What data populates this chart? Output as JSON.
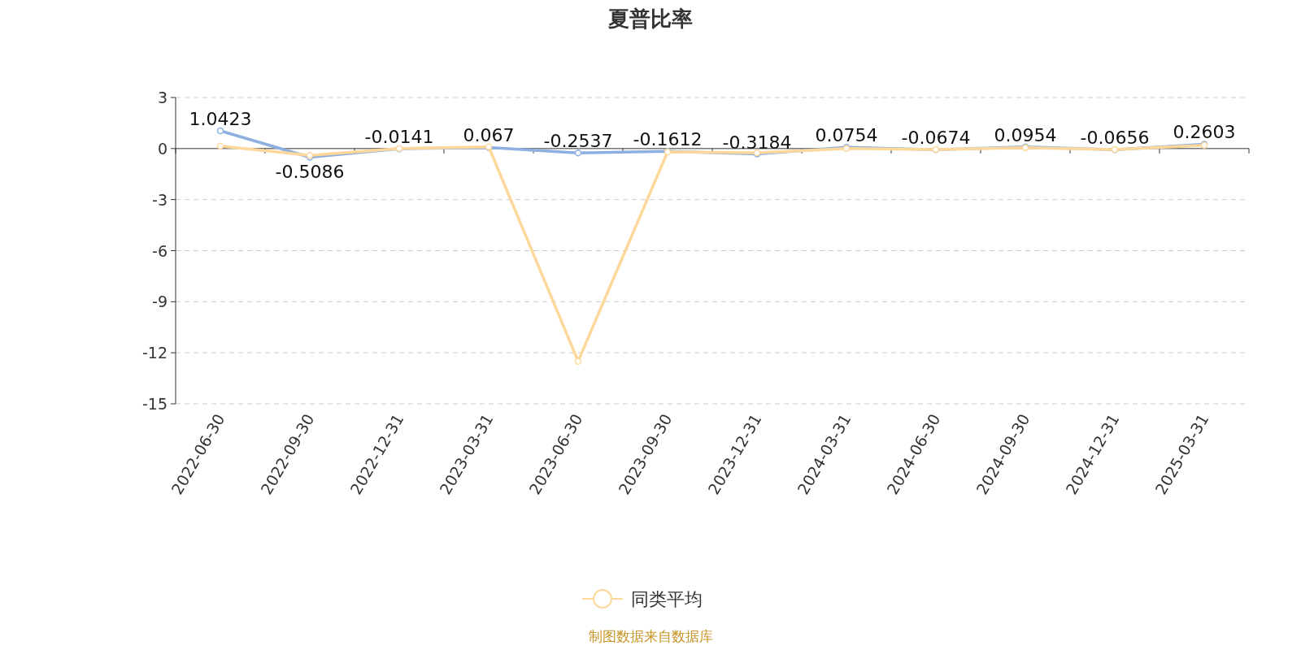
{
  "chart_data": {
    "type": "line",
    "title": "夏普比率",
    "categories": [
      "2022-06-30",
      "2022-09-30",
      "2022-12-31",
      "2023-03-31",
      "2023-06-30",
      "2023-09-30",
      "2023-12-31",
      "2024-03-31",
      "2024-06-30",
      "2024-09-30",
      "2024-12-31",
      "2025-03-31"
    ],
    "series": [
      {
        "color": "#8eb0e0",
        "values": [
          1.0423,
          -0.5086,
          -0.0141,
          0.067,
          -0.2537,
          -0.1612,
          -0.3184,
          0.0754,
          -0.0674,
          0.0954,
          -0.0656,
          0.2603
        ],
        "value_labels": [
          "1.0423",
          "-0.5086",
          "-0.0141",
          "0.067",
          "-0.2537",
          "-0.1612",
          "-0.3184",
          "0.0754",
          "-0.0674",
          "0.0954",
          "-0.0656",
          "0.2603"
        ]
      },
      {
        "name": "同类平均",
        "color": "#fdd89a",
        "values": [
          0.15,
          -0.4,
          0.0,
          0.1,
          -12.5,
          -0.2,
          -0.25,
          0.0,
          -0.05,
          0.05,
          -0.05,
          0.2
        ]
      }
    ],
    "ylim": [
      -15,
      3
    ],
    "yticks": [
      -15,
      -12,
      -9,
      -6,
      -3,
      0,
      3
    ],
    "grid": "y",
    "legend": "bottom",
    "marker": "circle",
    "annotations": [
      "制图数据来自数据库"
    ]
  }
}
